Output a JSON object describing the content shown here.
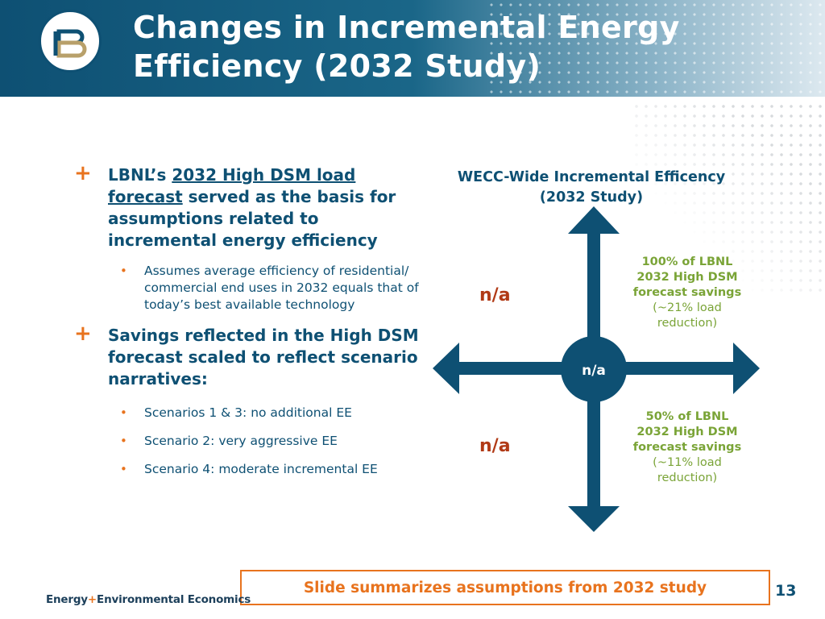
{
  "title": "Changes in Incremental Energy Efficiency (2032 Study)",
  "bullets": [
    {
      "prefix": "LBNL’s ",
      "link_text": "2032 High DSM load forecast",
      "suffix": " served as the basis for assumptions related to incremental energy efficiency",
      "sub": [
        "Assumes average efficiency of residential/ commercial end uses in 2032 equals that of today’s best available technology"
      ]
    },
    {
      "text": "Savings reflected in the High DSM forecast scaled to reflect scenario narratives:",
      "sub": [
        "Scenarios 1 & 3: no additional EE",
        "Scenario 2: very aggressive EE",
        "Scenario 4: moderate incremental EE"
      ]
    }
  ],
  "chart": {
    "title_line1": "WECC-Wide Incremental Efficency",
    "title_line2": "(2032 Study)",
    "center_label": "n/a",
    "upper_left": "n/a",
    "lower_left": "n/a",
    "upper_right": {
      "line1": "100% of LBNL",
      "line2": "2032 High DSM",
      "line3": "forecast savings",
      "line4": "(~21% load",
      "line5": "reduction)"
    },
    "lower_right": {
      "line1": "50% of LBNL",
      "line2": "2032 High DSM",
      "line3": "forecast savings",
      "line4": "(~11% load",
      "line5": "reduction)"
    }
  },
  "summary": "Slide summarizes assumptions from 2032 study",
  "page_number": "13",
  "footer": {
    "word1": "Energy",
    "plus": "+",
    "word2": "Environmental Economics"
  },
  "colors": {
    "navy": "#0e5073",
    "orange": "#e8731e",
    "green": "#7aa437",
    "red": "#b13a16"
  }
}
